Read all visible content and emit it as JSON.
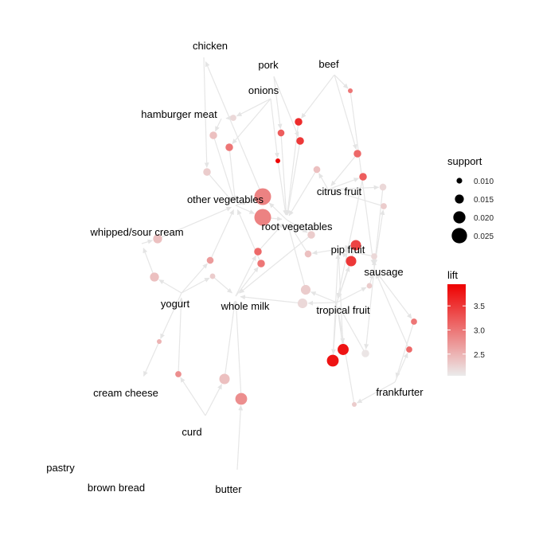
{
  "items": [
    {
      "id": "chicken",
      "label": "chicken"
    },
    {
      "id": "pork",
      "label": "pork"
    },
    {
      "id": "beef",
      "label": "beef"
    },
    {
      "id": "onions",
      "label": "onions"
    },
    {
      "id": "hamburger_meat",
      "label": "hamburger meat"
    },
    {
      "id": "citrus_fruit",
      "label": "citrus fruit"
    },
    {
      "id": "other_vegetables",
      "label": "other vegetables"
    },
    {
      "id": "root_vegetables",
      "label": "root vegetables"
    },
    {
      "id": "whipped_sour_cream",
      "label": "whipped/sour cream"
    },
    {
      "id": "pip_fruit",
      "label": "pip fruit"
    },
    {
      "id": "sausage",
      "label": "sausage"
    },
    {
      "id": "yogurt",
      "label": "yogurt"
    },
    {
      "id": "whole_milk",
      "label": "whole milk"
    },
    {
      "id": "tropical_fruit",
      "label": "tropical fruit"
    },
    {
      "id": "frankfurter",
      "label": "frankfurter"
    },
    {
      "id": "cream_cheese",
      "label": "cream cheese"
    },
    {
      "id": "curd",
      "label": "curd"
    },
    {
      "id": "pastry",
      "label": "pastry"
    },
    {
      "id": "brown_bread",
      "label": "brown bread"
    },
    {
      "id": "butter",
      "label": "butter"
    }
  ],
  "rules": [
    {
      "id": "r1",
      "support": 0.012,
      "lift": 2.3,
      "lhs": [
        "chicken"
      ],
      "rhs": [
        "other_vegetables"
      ]
    },
    {
      "id": "r2",
      "support": 0.012,
      "lift": 2.4,
      "lhs": [
        "hamburger_meat"
      ],
      "rhs": [
        "other_vegetables"
      ]
    },
    {
      "id": "r3",
      "support": 0.01,
      "lift": 2.2,
      "lhs": [
        "onions"
      ],
      "rhs": [
        "hamburger_meat"
      ]
    },
    {
      "id": "r4",
      "support": 0.012,
      "lift": 3.0,
      "lhs": [
        "onions"
      ],
      "rhs": [
        "other_vegetables"
      ]
    },
    {
      "id": "r5",
      "support": 0.009,
      "lift": 2.6,
      "lhs": [
        "other_vegetables"
      ],
      "rhs": [
        "chicken"
      ]
    },
    {
      "id": "r6",
      "support": 0.011,
      "lift": 3.2,
      "lhs": [
        "pork"
      ],
      "rhs": [
        "root_vegetables"
      ]
    },
    {
      "id": "r7",
      "support": 0.012,
      "lift": 3.6,
      "lhs": [
        "beef"
      ],
      "rhs": [
        "root_vegetables"
      ]
    },
    {
      "id": "r8",
      "support": 0.012,
      "lift": 3.5,
      "lhs": [
        "pork"
      ],
      "rhs": [
        "root_vegetables"
      ]
    },
    {
      "id": "r9",
      "support": 0.008,
      "lift": 3.9,
      "lhs": [
        "onions"
      ],
      "rhs": [
        "root_vegetables"
      ]
    },
    {
      "id": "r10",
      "support": 0.008,
      "lift": 3.0,
      "lhs": [
        "beef"
      ],
      "rhs": [
        "sausage"
      ]
    },
    {
      "id": "r11",
      "support": 0.012,
      "lift": 3.1,
      "lhs": [
        "beef"
      ],
      "rhs": [
        "citrus_fruit"
      ]
    },
    {
      "id": "r12",
      "support": 0.011,
      "lift": 2.4,
      "lhs": [
        "citrus_fruit"
      ],
      "rhs": [
        "root_vegetables"
      ]
    },
    {
      "id": "r13",
      "support": 0.012,
      "lift": 3.2,
      "lhs": [
        "citrus_fruit"
      ],
      "rhs": [
        "tropical_fruit"
      ]
    },
    {
      "id": "r14",
      "support": 0.011,
      "lift": 2.2,
      "lhs": [
        "citrus_fruit"
      ],
      "rhs": [
        "sausage"
      ]
    },
    {
      "id": "r15",
      "support": 0.01,
      "lift": 2.3,
      "lhs": [
        "sausage"
      ],
      "rhs": [
        "citrus_fruit"
      ]
    },
    {
      "id": "r16",
      "support": 0.025,
      "lift": 2.9,
      "lhs": [
        "root_vegetables"
      ],
      "rhs": [
        "other_vegetables"
      ]
    },
    {
      "id": "r17",
      "support": 0.025,
      "lift": 2.9,
      "lhs": [
        "other_vegetables"
      ],
      "rhs": [
        "root_vegetables"
      ]
    },
    {
      "id": "r18",
      "support": 0.012,
      "lift": 2.3,
      "lhs": [
        "root_vegetables"
      ],
      "rhs": [
        "whole_milk"
      ]
    },
    {
      "id": "r19",
      "support": 0.016,
      "lift": 3.4,
      "lhs": [
        "pip_fruit"
      ],
      "rhs": [
        "tropical_fruit"
      ]
    },
    {
      "id": "r20",
      "support": 0.016,
      "lift": 3.5,
      "lhs": [
        "tropical_fruit"
      ],
      "rhs": [
        "pip_fruit"
      ]
    },
    {
      "id": "r21",
      "support": 0.011,
      "lift": 2.4,
      "lhs": [
        "pip_fruit"
      ],
      "rhs": [
        "root_vegetables"
      ]
    },
    {
      "id": "r22",
      "support": 0.01,
      "lift": 2.2,
      "lhs": [
        "sausage"
      ],
      "rhs": [
        "pip_fruit"
      ]
    },
    {
      "id": "r23",
      "support": 0.009,
      "lift": 2.3,
      "lhs": [
        "tropical_fruit"
      ],
      "rhs": [
        "sausage"
      ]
    },
    {
      "id": "r24",
      "support": 0.014,
      "lift": 2.4,
      "lhs": [
        "whipped_sour_cream"
      ],
      "rhs": [
        "other_vegetables"
      ]
    },
    {
      "id": "r25",
      "support": 0.014,
      "lift": 2.4,
      "lhs": [
        "yogurt"
      ],
      "rhs": [
        "whipped_sour_cream"
      ]
    },
    {
      "id": "r26",
      "support": 0.009,
      "lift": 2.3,
      "lhs": [
        "yogurt"
      ],
      "rhs": [
        "whole_milk"
      ]
    },
    {
      "id": "r27",
      "support": 0.011,
      "lift": 2.7,
      "lhs": [
        "yogurt"
      ],
      "rhs": [
        "other_vegetables"
      ]
    },
    {
      "id": "r28",
      "support": 0.012,
      "lift": 3.1,
      "lhs": [
        "whole_milk"
      ],
      "rhs": [
        "root_vegetables"
      ]
    },
    {
      "id": "r29",
      "support": 0.012,
      "lift": 3.0,
      "lhs": [
        "whole_milk"
      ],
      "rhs": [
        "other_vegetables"
      ]
    },
    {
      "id": "r30",
      "support": 0.015,
      "lift": 2.3,
      "lhs": [
        "tropical_fruit"
      ],
      "rhs": [
        "root_vegetables"
      ]
    },
    {
      "id": "r31",
      "support": 0.015,
      "lift": 2.2,
      "lhs": [
        "tropical_fruit"
      ],
      "rhs": [
        "whole_milk"
      ]
    },
    {
      "id": "r32",
      "support": 0.018,
      "lift": 3.8,
      "lhs": [
        "tropical_fruit"
      ],
      "rhs": [
        "pip_fruit"
      ]
    },
    {
      "id": "r33",
      "support": 0.017,
      "lift": 3.8,
      "lhs": [
        "pip_fruit"
      ],
      "rhs": [
        "tropical_fruit"
      ]
    },
    {
      "id": "r34",
      "support": 0.012,
      "lift": 2.1,
      "lhs": [
        "sausage"
      ],
      "rhs": [
        "tropical_fruit"
      ]
    },
    {
      "id": "r35",
      "support": 0.01,
      "lift": 3.0,
      "lhs": [
        "sausage"
      ],
      "rhs": [
        "frankfurter"
      ]
    },
    {
      "id": "r36",
      "support": 0.01,
      "lift": 3.1,
      "lhs": [
        "frankfurter"
      ],
      "rhs": [
        "sausage"
      ]
    },
    {
      "id": "r37",
      "support": 0.008,
      "lift": 2.5,
      "lhs": [
        "yogurt"
      ],
      "rhs": [
        "cream_cheese"
      ]
    },
    {
      "id": "r38",
      "support": 0.01,
      "lift": 2.8,
      "lhs": [
        "curd"
      ],
      "rhs": [
        "yogurt"
      ]
    },
    {
      "id": "r39",
      "support": 0.016,
      "lift": 2.4,
      "lhs": [
        "curd"
      ],
      "rhs": [
        "whole_milk"
      ]
    },
    {
      "id": "r40",
      "support": 0.018,
      "lift": 2.8,
      "lhs": [
        "butter"
      ],
      "rhs": [
        "whole_milk"
      ]
    },
    {
      "id": "r41",
      "support": 0.008,
      "lift": 2.3,
      "lhs": [
        "frankfurter"
      ],
      "rhs": [
        "tropical_fruit"
      ]
    }
  ],
  "legend": {
    "support": {
      "title": "support",
      "entries": [
        {
          "label": "0.010",
          "value": 0.01
        },
        {
          "label": "0.015",
          "value": 0.015
        },
        {
          "label": "0.020",
          "value": 0.02
        },
        {
          "label": "0.025",
          "value": 0.025
        }
      ]
    },
    "lift": {
      "title": "lift",
      "ticks": [
        {
          "label": "3.5",
          "value": 3.5
        },
        {
          "label": "3.0",
          "value": 3.0
        },
        {
          "label": "2.5",
          "value": 2.5
        }
      ],
      "range": [
        2.05,
        3.95
      ],
      "color_low": "#ebebeb",
      "color_high": "#ee0000"
    }
  },
  "colors": {
    "edge": "#e6e6e6",
    "label": "#000000"
  }
}
